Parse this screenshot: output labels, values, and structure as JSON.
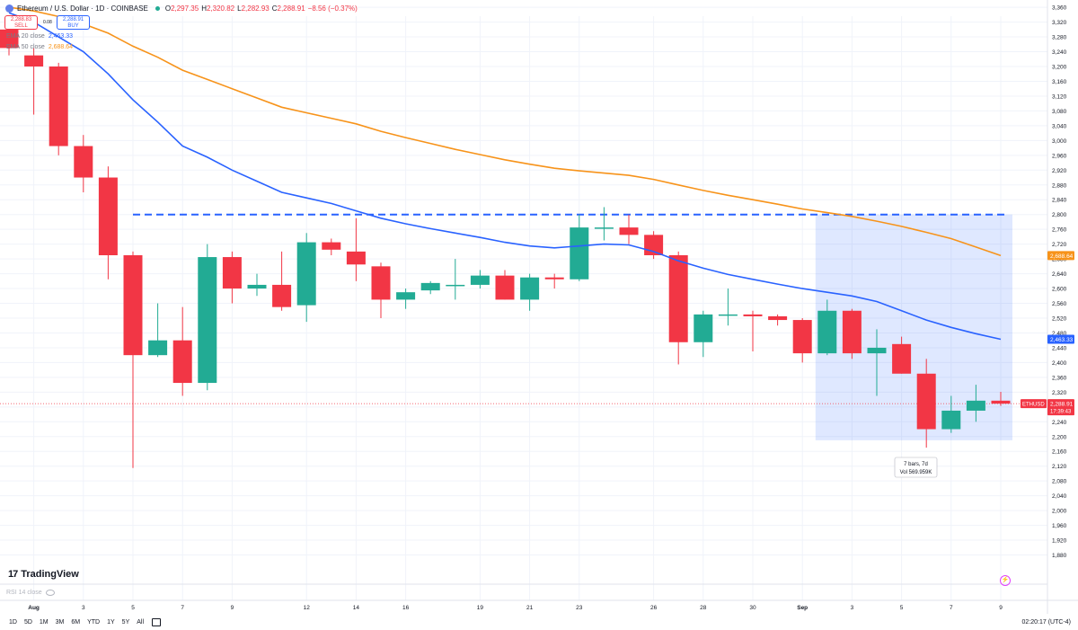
{
  "header": {
    "symbol": "Ethereum / U.S. Dollar · 1D · COINBASE",
    "o_label": "O",
    "o": "2,297.35",
    "h_label": "H",
    "h": "2,320.82",
    "l_label": "L",
    "l": "2,282.93",
    "c_label": "C",
    "c": "2,288.91",
    "change": "−8.56 (−0.37%)",
    "sell_price": "2,288.83",
    "sell_label": "SELL",
    "spread": "0.08",
    "buy_price": "2,288.91",
    "buy_label": "BUY"
  },
  "indicators": {
    "ema20_label": "EMA 20 close",
    "ema20_value": "2,463.33",
    "ema20_color": "#2962ff",
    "ema50_label": "EMA 50 close",
    "ema50_value": "2,688.64",
    "ema50_color": "#f7931a"
  },
  "colors": {
    "up": "#22ab94",
    "down": "#f23645",
    "range_fill": "#2962ff"
  },
  "price_tags": {
    "ema50": "2,688.64",
    "ema20": "2,463.33",
    "current_symbol": "ETHUSD",
    "current_price": "2,288.91",
    "countdown": "17:39:43"
  },
  "measure": {
    "line1": "7 bars, 7d",
    "line2": "Vol 569.959K"
  },
  "logo": "TradingView",
  "rsi_label": "RSI 14 close",
  "timeframes": [
    "1D",
    "5D",
    "1M",
    "3M",
    "6M",
    "YTD",
    "1Y",
    "5Y",
    "All"
  ],
  "clock": "02:20:17 (UTC-4)",
  "chart_data": {
    "type": "candlestick",
    "title": "Ethereum / U.S. Dollar · 1D · COINBASE",
    "ylim": [
      1840,
      3370
    ],
    "y_ticks": [
      1880,
      1920,
      1960,
      2000,
      2040,
      2080,
      2120,
      2160,
      2200,
      2240,
      2280,
      2320,
      2360,
      2400,
      2440,
      2480,
      2520,
      2560,
      2600,
      2640,
      2680,
      2720,
      2760,
      2800,
      2840,
      2880,
      2920,
      2960,
      3000,
      3040,
      3080,
      3120,
      3160,
      3200,
      3240,
      3280,
      3320,
      3360
    ],
    "x_tick_labels": [
      {
        "label": "Aug",
        "index": 1,
        "bold": true
      },
      {
        "label": "3",
        "index": 3
      },
      {
        "label": "5",
        "index": 5
      },
      {
        "label": "7",
        "index": 7
      },
      {
        "label": "9",
        "index": 9
      },
      {
        "label": "12",
        "index": 12
      },
      {
        "label": "14",
        "index": 14
      },
      {
        "label": "16",
        "index": 16
      },
      {
        "label": "19",
        "index": 19
      },
      {
        "label": "21",
        "index": 21
      },
      {
        "label": "23",
        "index": 23
      },
      {
        "label": "26",
        "index": 26
      },
      {
        "label": "28",
        "index": 28
      },
      {
        "label": "30",
        "index": 30
      },
      {
        "label": "Sep",
        "index": 32,
        "bold": true
      },
      {
        "label": "3",
        "index": 34
      },
      {
        "label": "5",
        "index": 36
      },
      {
        "label": "7",
        "index": 38
      },
      {
        "label": "9",
        "index": 40
      }
    ],
    "candles": [
      {
        "o": 3300,
        "h": 3320,
        "l": 3230,
        "c": 3250
      },
      {
        "o": 3230,
        "h": 3250,
        "l": 3070,
        "c": 3200
      },
      {
        "o": 3200,
        "h": 3210,
        "l": 2960,
        "c": 2985
      },
      {
        "o": 2985,
        "h": 3015,
        "l": 2860,
        "c": 2900
      },
      {
        "o": 2900,
        "h": 2930,
        "l": 2625,
        "c": 2690
      },
      {
        "o": 2690,
        "h": 2700,
        "l": 2115,
        "c": 2420
      },
      {
        "o": 2420,
        "h": 2560,
        "l": 2415,
        "c": 2460
      },
      {
        "o": 2460,
        "h": 2550,
        "l": 2310,
        "c": 2345
      },
      {
        "o": 2345,
        "h": 2720,
        "l": 2325,
        "c": 2685
      },
      {
        "o": 2685,
        "h": 2700,
        "l": 2560,
        "c": 2600
      },
      {
        "o": 2600,
        "h": 2640,
        "l": 2580,
        "c": 2610
      },
      {
        "o": 2610,
        "h": 2700,
        "l": 2540,
        "c": 2550
      },
      {
        "o": 2555,
        "h": 2750,
        "l": 2510,
        "c": 2725
      },
      {
        "o": 2725,
        "h": 2735,
        "l": 2690,
        "c": 2705
      },
      {
        "o": 2700,
        "h": 2790,
        "l": 2620,
        "c": 2665
      },
      {
        "o": 2660,
        "h": 2670,
        "l": 2520,
        "c": 2570
      },
      {
        "o": 2570,
        "h": 2600,
        "l": 2545,
        "c": 2590
      },
      {
        "o": 2595,
        "h": 2620,
        "l": 2585,
        "c": 2615
      },
      {
        "o": 2610,
        "h": 2680,
        "l": 2570,
        "c": 2610
      },
      {
        "o": 2610,
        "h": 2650,
        "l": 2600,
        "c": 2635
      },
      {
        "o": 2635,
        "h": 2650,
        "l": 2570,
        "c": 2570
      },
      {
        "o": 2570,
        "h": 2640,
        "l": 2540,
        "c": 2630
      },
      {
        "o": 2630,
        "h": 2640,
        "l": 2600,
        "c": 2625
      },
      {
        "o": 2625,
        "h": 2800,
        "l": 2620,
        "c": 2765
      },
      {
        "o": 2765,
        "h": 2820,
        "l": 2730,
        "c": 2765
      },
      {
        "o": 2765,
        "h": 2800,
        "l": 2720,
        "c": 2745
      },
      {
        "o": 2745,
        "h": 2755,
        "l": 2680,
        "c": 2690
      },
      {
        "o": 2690,
        "h": 2700,
        "l": 2395,
        "c": 2455
      },
      {
        "o": 2455,
        "h": 2540,
        "l": 2415,
        "c": 2530
      },
      {
        "o": 2530,
        "h": 2600,
        "l": 2500,
        "c": 2530
      },
      {
        "o": 2530,
        "h": 2540,
        "l": 2430,
        "c": 2525
      },
      {
        "o": 2525,
        "h": 2530,
        "l": 2500,
        "c": 2515
      },
      {
        "o": 2515,
        "h": 2520,
        "l": 2400,
        "c": 2425
      },
      {
        "o": 2425,
        "h": 2570,
        "l": 2420,
        "c": 2540
      },
      {
        "o": 2540,
        "h": 2545,
        "l": 2410,
        "c": 2425
      },
      {
        "o": 2425,
        "h": 2490,
        "l": 2310,
        "c": 2440
      },
      {
        "o": 2450,
        "h": 2470,
        "l": 2370,
        "c": 2370
      },
      {
        "o": 2370,
        "h": 2410,
        "l": 2170,
        "c": 2220
      },
      {
        "o": 2220,
        "h": 2310,
        "l": 2210,
        "c": 2270
      },
      {
        "o": 2270,
        "h": 2340,
        "l": 2240,
        "c": 2297
      },
      {
        "o": 2297,
        "h": 2321,
        "l": 2283,
        "c": 2289
      }
    ],
    "ema20": [
      [
        0,
        3345
      ],
      [
        1,
        3320
      ],
      [
        2,
        3280
      ],
      [
        3,
        3240
      ],
      [
        4,
        3180
      ],
      [
        5,
        3110
      ],
      [
        6,
        3050
      ],
      [
        7,
        2985
      ],
      [
        8,
        2955
      ],
      [
        9,
        2920
      ],
      [
        10,
        2890
      ],
      [
        11,
        2860
      ],
      [
        12,
        2845
      ],
      [
        13,
        2830
      ],
      [
        14,
        2810
      ],
      [
        15,
        2790
      ],
      [
        16,
        2775
      ],
      [
        17,
        2762
      ],
      [
        18,
        2750
      ],
      [
        19,
        2738
      ],
      [
        20,
        2725
      ],
      [
        21,
        2715
      ],
      [
        22,
        2710
      ],
      [
        23,
        2715
      ],
      [
        24,
        2720
      ],
      [
        25,
        2718
      ],
      [
        26,
        2700
      ],
      [
        27,
        2675
      ],
      [
        28,
        2655
      ],
      [
        29,
        2638
      ],
      [
        30,
        2625
      ],
      [
        31,
        2612
      ],
      [
        32,
        2600
      ],
      [
        33,
        2590
      ],
      [
        34,
        2580
      ],
      [
        35,
        2565
      ],
      [
        36,
        2540
      ],
      [
        37,
        2515
      ],
      [
        38,
        2495
      ],
      [
        39,
        2478
      ],
      [
        40,
        2463
      ]
    ],
    "ema50": [
      [
        0,
        3360
      ],
      [
        1,
        3350
      ],
      [
        2,
        3335
      ],
      [
        3,
        3315
      ],
      [
        4,
        3290
      ],
      [
        5,
        3255
      ],
      [
        6,
        3225
      ],
      [
        7,
        3190
      ],
      [
        8,
        3165
      ],
      [
        9,
        3140
      ],
      [
        10,
        3115
      ],
      [
        11,
        3090
      ],
      [
        12,
        3075
      ],
      [
        13,
        3060
      ],
      [
        14,
        3045
      ],
      [
        15,
        3025
      ],
      [
        16,
        3008
      ],
      [
        17,
        2992
      ],
      [
        18,
        2976
      ],
      [
        19,
        2962
      ],
      [
        20,
        2948
      ],
      [
        21,
        2936
      ],
      [
        22,
        2925
      ],
      [
        23,
        2918
      ],
      [
        24,
        2912
      ],
      [
        25,
        2906
      ],
      [
        26,
        2895
      ],
      [
        27,
        2880
      ],
      [
        28,
        2865
      ],
      [
        29,
        2852
      ],
      [
        30,
        2840
      ],
      [
        31,
        2828
      ],
      [
        32,
        2815
      ],
      [
        33,
        2805
      ],
      [
        34,
        2795
      ],
      [
        35,
        2782
      ],
      [
        36,
        2768
      ],
      [
        37,
        2752
      ],
      [
        38,
        2735
      ],
      [
        39,
        2712
      ],
      [
        40,
        2689
      ]
    ],
    "horizontal_line": 2800,
    "current_price_line": 2289,
    "range_box": {
      "start": 33,
      "end": 40,
      "high": 2800,
      "low": 2190
    }
  }
}
